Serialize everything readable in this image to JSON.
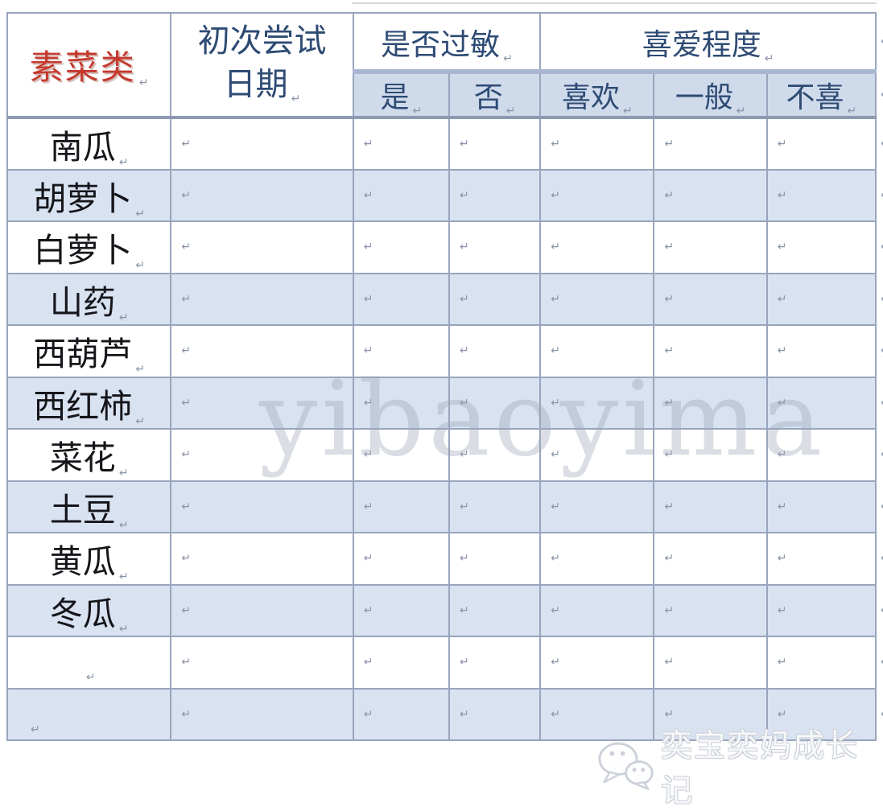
{
  "page": {
    "watermark": "yibaoyima",
    "footer_brand": "奕宝奕妈成长记"
  },
  "table": {
    "corner_header": "素菜类",
    "date_header_line1": "初次尝试",
    "date_header_line2": "日期",
    "group_headers": {
      "allergy": "是否过敏",
      "preference": "喜爱程度"
    },
    "sub_headers": {
      "yes": "是",
      "no": "否",
      "like": "喜欢",
      "neutral": "一般",
      "dislike": "不喜"
    },
    "row_labels": [
      "南瓜",
      "胡萝卜",
      "白萝卜",
      "山药",
      "西葫芦",
      "西红柿",
      "菜花",
      "土豆",
      "黄瓜",
      "冬瓜",
      "",
      ""
    ],
    "pilcrow": "↵"
  },
  "colors": {
    "alt_row_bg": "#d9e2f1",
    "subheader_bg": "#cfdaeb",
    "border": "#98a5bc",
    "thick_divider": "#a9b7d2",
    "header_text": "#2e4b74",
    "label_text": "#15151a",
    "category_red": "#c53a2e",
    "watermark_gray": "#9ea6b8"
  }
}
